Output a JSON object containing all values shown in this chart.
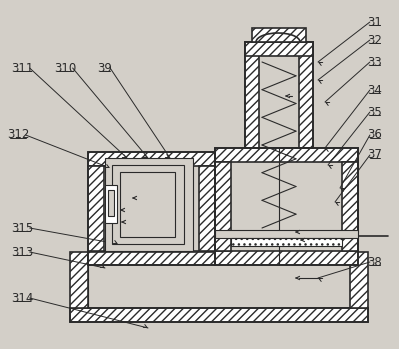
{
  "bg_color": "#d3cfc8",
  "line_color": "#2a2a2a",
  "white": "#ffffff",
  "label_fontsize": 8.5,
  "figsize": [
    3.99,
    3.49
  ],
  "dpi": 100,
  "labels_right": [
    [
      "31",
      375,
      22,
      318,
      62
    ],
    [
      "32",
      375,
      40,
      318,
      80
    ],
    [
      "33",
      375,
      62,
      325,
      102
    ],
    [
      "34",
      375,
      90,
      325,
      148
    ],
    [
      "35",
      375,
      112,
      328,
      165
    ],
    [
      "36",
      375,
      135,
      340,
      188
    ],
    [
      "37",
      375,
      155,
      335,
      202
    ],
    [
      "38",
      375,
      262,
      318,
      278
    ]
  ],
  "labels_left": [
    [
      "311",
      22,
      68,
      127,
      158
    ],
    [
      "310",
      65,
      68,
      148,
      158
    ],
    [
      "39",
      105,
      68,
      170,
      158
    ],
    [
      "312",
      18,
      135,
      110,
      168
    ],
    [
      "315",
      22,
      228,
      118,
      244
    ],
    [
      "313",
      22,
      252,
      105,
      268
    ],
    [
      "314",
      22,
      298,
      148,
      328
    ]
  ]
}
